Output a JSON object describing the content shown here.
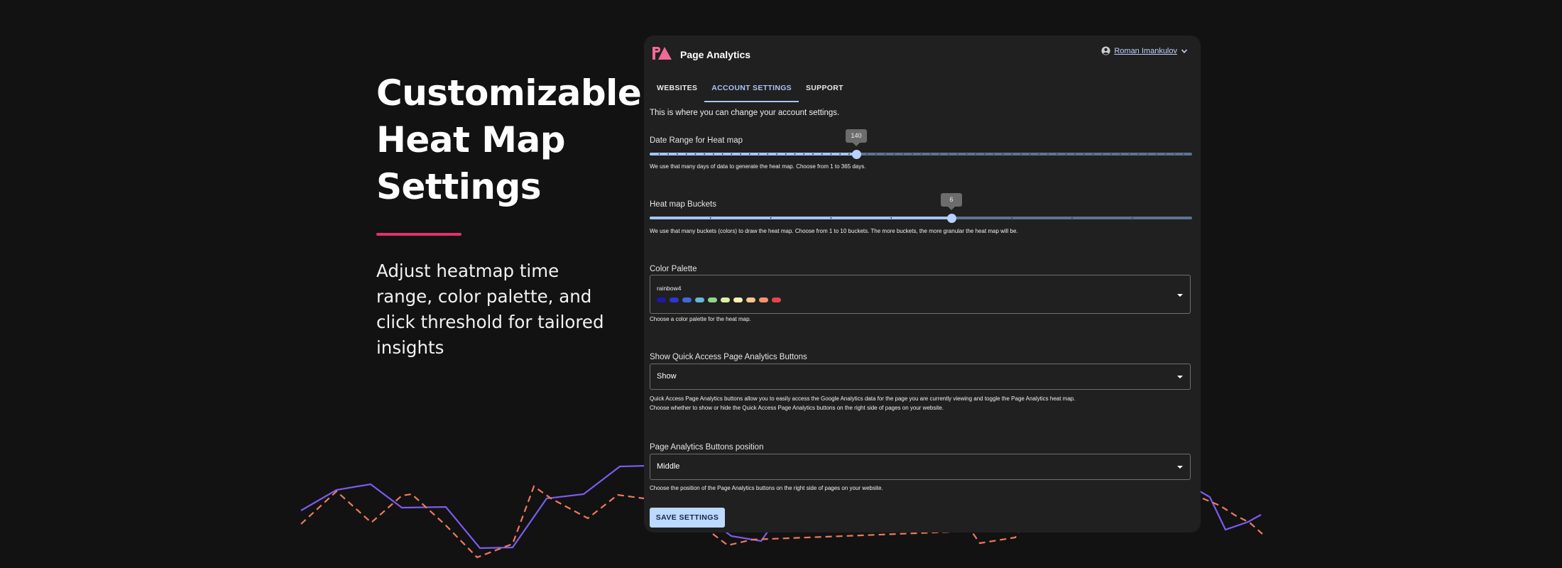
{
  "hero": {
    "title_lines": [
      "Customizable",
      "Heat Map",
      "Settings"
    ],
    "subtitle": "Adjust heatmap time range, color palette, and click threshold for tailored insights",
    "accent_color": "#e0326b"
  },
  "app": {
    "title": "Page Analytics",
    "logo_icon": "page-analytics-logo",
    "user": {
      "name": "Roman Imankulov",
      "icon": "account-circle-icon",
      "menu_icon": "chevron-down-icon"
    }
  },
  "tabs": [
    {
      "label": "WEBSITES",
      "active": false
    },
    {
      "label": "ACCOUNT SETTINGS",
      "active": true
    },
    {
      "label": "SUPPORT",
      "active": false
    }
  ],
  "intro": "This is where you can change your account settings.",
  "date_range": {
    "label": "Date Range for Heat map",
    "value": "140",
    "min": 1,
    "max": 365,
    "help": "We use that many days of data to generate the heat map. Choose from 1 to 365 days."
  },
  "buckets": {
    "label": "Heat map Buckets",
    "value": "6",
    "min": 1,
    "max": 10,
    "help": "We use that many buckets (colors) to draw the heat map. Choose from 1 to 10 buckets. The more buckets, the more granular the heat map will be."
  },
  "palette": {
    "label": "Color Palette",
    "selected": "rainbow4",
    "colors": [
      "#1c1aa8",
      "#2d36cf",
      "#3e6ad8",
      "#68b6d4",
      "#8ed68a",
      "#dcefa4",
      "#f8f1b0",
      "#f7c58d",
      "#f4926c",
      "#e2454a"
    ],
    "help": "Choose a color palette for the heat map."
  },
  "quick_access": {
    "label": "Show Quick Access Page Analytics Buttons",
    "selected": "Show",
    "help_lines": [
      "Quick Access Page Analytics buttons allow you to easily access the Google Analytics data for the page you are currently viewing and toggle the Page Analytics heat map.",
      "Choose whether to show or hide the Quick Access Page Analytics buttons on the right side of pages on your website."
    ]
  },
  "position": {
    "label": "Page Analytics Buttons position",
    "selected": "Middle",
    "help": "Choose the position of the Page Analytics buttons on the right side of pages on your website."
  },
  "save_label": "SAVE SETTINGS",
  "colors": {
    "bg": "#121212",
    "panel": "#202020",
    "accent": "#a8c4f4",
    "button": "#bcd9ff",
    "line_solid": "#7b5cf0",
    "line_dashed": "#f07a5c"
  }
}
